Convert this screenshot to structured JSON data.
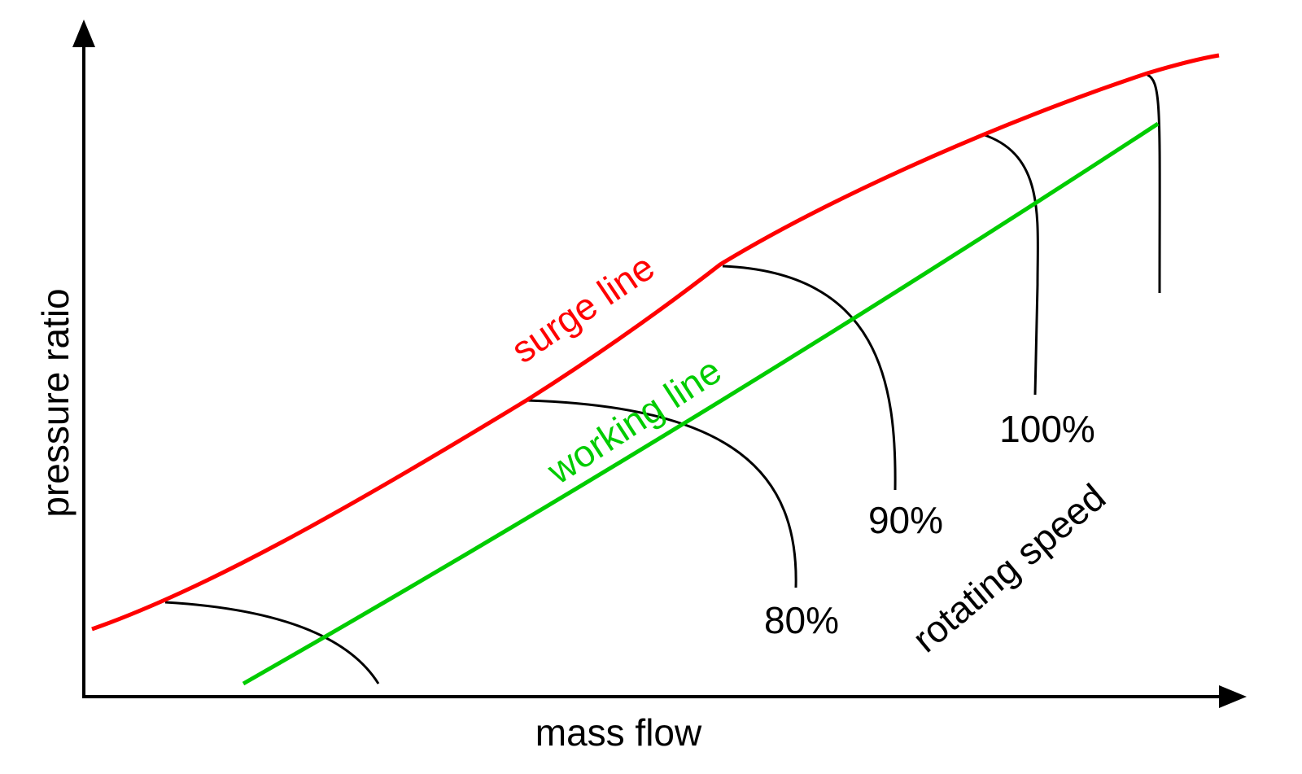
{
  "axes": {
    "x_label": "mass flow",
    "y_label": "pressure ratio"
  },
  "lines": {
    "surge": {
      "label": "surge line",
      "color": "#ff0000"
    },
    "working": {
      "label": "working line",
      "color": "#00cc00"
    }
  },
  "speed_lines": {
    "color": "#000000",
    "labels": [
      "80%",
      "90%",
      "100%"
    ],
    "caption": "rotating speed"
  }
}
